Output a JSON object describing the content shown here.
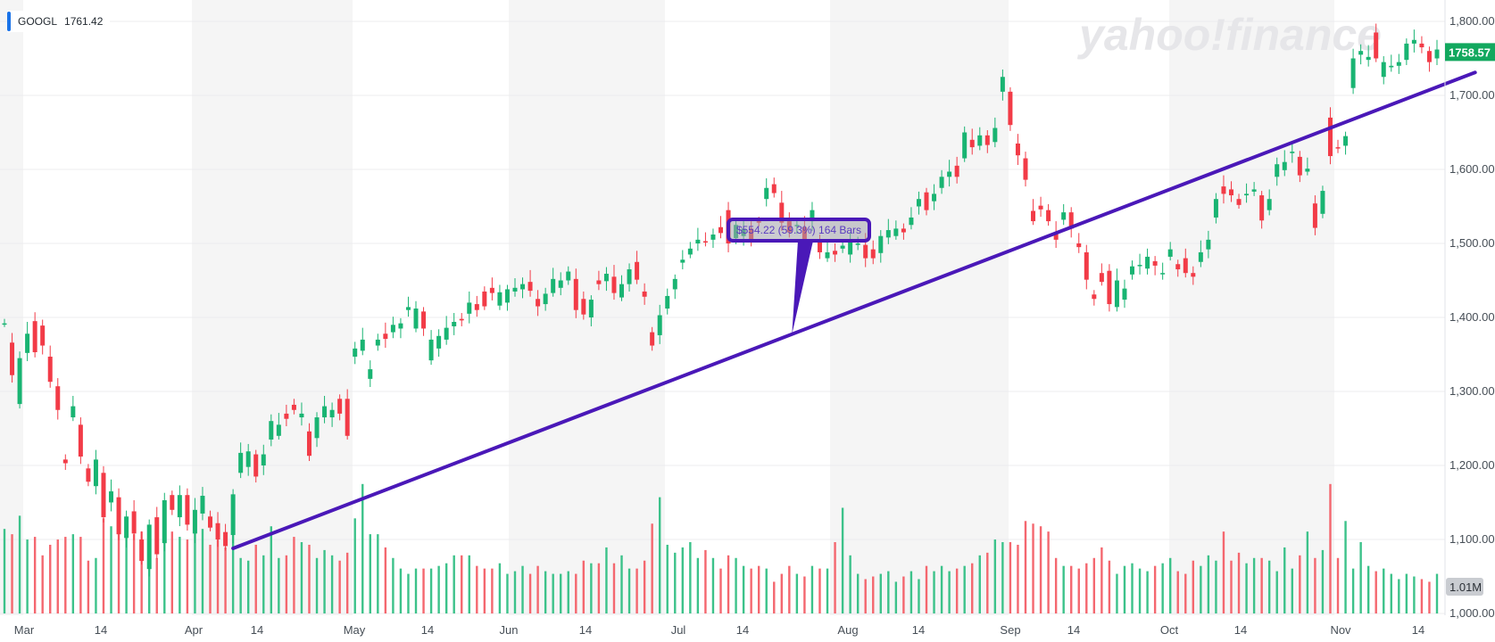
{
  "ticker": {
    "symbol": "GOOGL",
    "value": "1761.42"
  },
  "watermark": "yahoo!finance",
  "price_tag": "1758.57",
  "volume_tag": "1.01M",
  "annotation_label": "$554.22 (59.3%) 164 Bars",
  "colors": {
    "up": "#19b472",
    "down": "#f23b47",
    "volume_up": "#3cc28a",
    "volume_down": "#f4676f",
    "trendline": "#4a18b8",
    "band": "#f5f5f5",
    "price_tag_bg": "#12a85e",
    "volume_tag_bg": "#c9ccd1"
  },
  "chart_data": {
    "type": "candlestick",
    "ylim": [
      1000,
      1800
    ],
    "y_ticks": [
      "1,000.00",
      "1,100.00",
      "1,200.00",
      "1,300.00",
      "1,400.00",
      "1,500.00",
      "1,600.00",
      "1,700.00",
      "1,800.00"
    ],
    "x_ticks": [
      "Mar",
      "14",
      "Apr",
      "14",
      "May",
      "14",
      "Jun",
      "14",
      "Jul",
      "14",
      "Aug",
      "14",
      "Sep",
      "14",
      "Oct",
      "14",
      "Nov",
      "14"
    ],
    "series": [
      {
        "candles": [
          {
            "o": 1392,
            "c": 1392
          },
          {
            "o": 1366,
            "c": 1322
          },
          {
            "o": 1283,
            "c": 1345
          },
          {
            "o": 1352,
            "c": 1378
          },
          {
            "o": 1395,
            "c": 1353
          },
          {
            "o": 1389,
            "c": 1362
          },
          {
            "o": 1347,
            "c": 1313
          },
          {
            "o": 1307,
            "c": 1275
          },
          {
            "o": 1208,
            "c": 1203
          },
          {
            "o": 1265,
            "c": 1280
          },
          {
            "o": 1255,
            "c": 1212
          },
          {
            "o": 1196,
            "c": 1178
          },
          {
            "o": 1172,
            "c": 1208
          },
          {
            "o": 1190,
            "c": 1130
          },
          {
            "o": 1150,
            "c": 1165
          },
          {
            "o": 1157,
            "c": 1107
          },
          {
            "o": 1102,
            "c": 1131
          },
          {
            "o": 1138,
            "c": 1108
          },
          {
            "o": 1100,
            "c": 1071
          },
          {
            "o": 1060,
            "c": 1120
          },
          {
            "o": 1130,
            "c": 1080
          },
          {
            "o": 1095,
            "c": 1153
          },
          {
            "o": 1160,
            "c": 1140
          },
          {
            "o": 1130,
            "c": 1160
          },
          {
            "o": 1160,
            "c": 1120
          },
          {
            "o": 1108,
            "c": 1140
          },
          {
            "o": 1135,
            "c": 1159
          },
          {
            "o": 1131,
            "c": 1116
          },
          {
            "o": 1122,
            "c": 1100
          },
          {
            "o": 1110,
            "c": 1091
          },
          {
            "o": 1106,
            "c": 1161
          },
          {
            "o": 1190,
            "c": 1217
          },
          {
            "o": 1198,
            "c": 1219
          },
          {
            "o": 1215,
            "c": 1185
          },
          {
            "o": 1200,
            "c": 1215
          },
          {
            "o": 1235,
            "c": 1260
          },
          {
            "o": 1240,
            "c": 1255
          },
          {
            "o": 1270,
            "c": 1263
          },
          {
            "o": 1282,
            "c": 1275
          },
          {
            "o": 1265,
            "c": 1270
          },
          {
            "o": 1246,
            "c": 1213
          },
          {
            "o": 1237,
            "c": 1265
          },
          {
            "o": 1265,
            "c": 1280
          },
          {
            "o": 1265,
            "c": 1275
          },
          {
            "o": 1290,
            "c": 1270
          },
          {
            "o": 1290,
            "c": 1240
          },
          {
            "o": 1347,
            "c": 1358
          },
          {
            "o": 1355,
            "c": 1370
          },
          {
            "o": 1317,
            "c": 1330
          },
          {
            "o": 1362,
            "c": 1370
          },
          {
            "o": 1378,
            "c": 1371
          },
          {
            "o": 1380,
            "c": 1390
          },
          {
            "o": 1385,
            "c": 1392
          },
          {
            "o": 1410,
            "c": 1414
          },
          {
            "o": 1385,
            "c": 1412
          },
          {
            "o": 1408,
            "c": 1385
          },
          {
            "o": 1342,
            "c": 1370
          },
          {
            "o": 1358,
            "c": 1375
          },
          {
            "o": 1370,
            "c": 1386
          },
          {
            "o": 1388,
            "c": 1394
          },
          {
            "o": 1398,
            "c": 1396
          },
          {
            "o": 1405,
            "c": 1420
          },
          {
            "o": 1418,
            "c": 1410
          },
          {
            "o": 1435,
            "c": 1415
          },
          {
            "o": 1440,
            "c": 1433
          },
          {
            "o": 1416,
            "c": 1434
          },
          {
            "o": 1420,
            "c": 1438
          },
          {
            "o": 1435,
            "c": 1440
          },
          {
            "o": 1438,
            "c": 1445
          },
          {
            "o": 1448,
            "c": 1436
          },
          {
            "o": 1425,
            "c": 1415
          },
          {
            "o": 1418,
            "c": 1432
          },
          {
            "o": 1433,
            "c": 1452
          },
          {
            "o": 1440,
            "c": 1450
          },
          {
            "o": 1450,
            "c": 1462
          },
          {
            "o": 1452,
            "c": 1410
          },
          {
            "o": 1425,
            "c": 1404
          },
          {
            "o": 1400,
            "c": 1424
          },
          {
            "o": 1450,
            "c": 1445
          },
          {
            "o": 1449,
            "c": 1459
          },
          {
            "o": 1455,
            "c": 1433
          },
          {
            "o": 1427,
            "c": 1445
          },
          {
            "o": 1445,
            "c": 1465
          },
          {
            "o": 1475,
            "c": 1451
          },
          {
            "o": 1435,
            "c": 1428
          },
          {
            "o": 1380,
            "c": 1362
          },
          {
            "o": 1376,
            "c": 1403
          },
          {
            "o": 1412,
            "c": 1429
          },
          {
            "o": 1438,
            "c": 1452
          },
          {
            "o": 1474,
            "c": 1478
          },
          {
            "o": 1485,
            "c": 1493
          },
          {
            "o": 1500,
            "c": 1505
          },
          {
            "o": 1503,
            "c": 1502
          },
          {
            "o": 1505,
            "c": 1512
          },
          {
            "o": 1522,
            "c": 1514
          },
          {
            "o": 1545,
            "c": 1500
          },
          {
            "o": 1507,
            "c": 1525
          },
          {
            "o": 1510,
            "c": 1520
          },
          {
            "o": 1520,
            "c": 1505
          },
          {
            "o": 1530,
            "c": 1528
          },
          {
            "o": 1560,
            "c": 1575
          },
          {
            "o": 1580,
            "c": 1568
          },
          {
            "o": 1555,
            "c": 1528
          },
          {
            "o": 1530,
            "c": 1515
          },
          {
            "o": 1525,
            "c": 1525
          },
          {
            "o": 1522,
            "c": 1498
          },
          {
            "o": 1530,
            "c": 1545
          },
          {
            "o": 1505,
            "c": 1488
          },
          {
            "o": 1480,
            "c": 1488
          },
          {
            "o": 1490,
            "c": 1485
          },
          {
            "o": 1493,
            "c": 1497
          },
          {
            "o": 1485,
            "c": 1502
          },
          {
            "o": 1498,
            "c": 1500
          },
          {
            "o": 1498,
            "c": 1480
          },
          {
            "o": 1492,
            "c": 1480
          },
          {
            "o": 1487,
            "c": 1510
          },
          {
            "o": 1508,
            "c": 1518
          },
          {
            "o": 1510,
            "c": 1520
          },
          {
            "o": 1520,
            "c": 1515
          },
          {
            "o": 1525,
            "c": 1535
          },
          {
            "o": 1550,
            "c": 1560
          },
          {
            "o": 1569,
            "c": 1545
          },
          {
            "o": 1557,
            "c": 1567
          },
          {
            "o": 1575,
            "c": 1590
          },
          {
            "o": 1590,
            "c": 1597
          },
          {
            "o": 1605,
            "c": 1590
          },
          {
            "o": 1615,
            "c": 1650
          },
          {
            "o": 1640,
            "c": 1630
          },
          {
            "o": 1632,
            "c": 1646
          },
          {
            "o": 1646,
            "c": 1633
          },
          {
            "o": 1637,
            "c": 1656
          },
          {
            "o": 1705,
            "c": 1725
          },
          {
            "o": 1705,
            "c": 1660
          },
          {
            "o": 1635,
            "c": 1619
          },
          {
            "o": 1615,
            "c": 1586
          },
          {
            "o": 1544,
            "c": 1530
          },
          {
            "o": 1551,
            "c": 1546
          },
          {
            "o": 1545,
            "c": 1530
          },
          {
            "o": 1515,
            "c": 1505
          },
          {
            "o": 1532,
            "c": 1542
          },
          {
            "o": 1542,
            "c": 1520
          },
          {
            "o": 1500,
            "c": 1495
          },
          {
            "o": 1488,
            "c": 1451
          },
          {
            "o": 1431,
            "c": 1425
          },
          {
            "o": 1460,
            "c": 1448
          },
          {
            "o": 1463,
            "c": 1418
          },
          {
            "o": 1414,
            "c": 1450
          },
          {
            "o": 1424,
            "c": 1439
          },
          {
            "o": 1458,
            "c": 1469
          },
          {
            "o": 1470,
            "c": 1471
          },
          {
            "o": 1466,
            "c": 1482
          },
          {
            "o": 1476,
            "c": 1470
          },
          {
            "o": 1460,
            "c": 1460
          },
          {
            "o": 1482,
            "c": 1492
          },
          {
            "o": 1472,
            "c": 1465
          },
          {
            "o": 1480,
            "c": 1460
          },
          {
            "o": 1460,
            "c": 1455
          },
          {
            "o": 1475,
            "c": 1488
          },
          {
            "o": 1492,
            "c": 1505
          },
          {
            "o": 1535,
            "c": 1560
          },
          {
            "o": 1577,
            "c": 1567
          },
          {
            "o": 1573,
            "c": 1565
          },
          {
            "o": 1560,
            "c": 1552
          },
          {
            "o": 1565,
            "c": 1567
          },
          {
            "o": 1570,
            "c": 1573
          },
          {
            "o": 1565,
            "c": 1531
          },
          {
            "o": 1545,
            "c": 1560
          },
          {
            "o": 1590,
            "c": 1607
          },
          {
            "o": 1599,
            "c": 1610
          },
          {
            "o": 1622,
            "c": 1624
          },
          {
            "o": 1617,
            "c": 1592
          },
          {
            "o": 1597,
            "c": 1601
          },
          {
            "o": 1554,
            "c": 1521
          },
          {
            "o": 1540,
            "c": 1571
          },
          {
            "o": 1670,
            "c": 1618
          },
          {
            "o": 1630,
            "c": 1629
          },
          {
            "o": 1632,
            "c": 1645
          },
          {
            "o": 1710,
            "c": 1750
          },
          {
            "o": 1755,
            "c": 1760
          },
          {
            "o": 1748,
            "c": 1752
          },
          {
            "o": 1785,
            "c": 1750
          },
          {
            "o": 1725,
            "c": 1745
          },
          {
            "o": 1738,
            "c": 1740
          },
          {
            "o": 1740,
            "c": 1745
          },
          {
            "o": 1748,
            "c": 1770
          },
          {
            "o": 1770,
            "c": 1775
          },
          {
            "o": 1770,
            "c": 1765
          },
          {
            "o": 1760,
            "c": 1745
          },
          {
            "o": 1750,
            "c": 1762
          }
        ]
      },
      {
        "name": "",
        "volume_millions": [
          1.6,
          1.5,
          1.85,
          1.4,
          1.45,
          1.1,
          1.3,
          1.4,
          1.45,
          1.5,
          1.45,
          1.0,
          1.05,
          1.8,
          1.65,
          1.75,
          1.6,
          1.5,
          1.55,
          1.6,
          1.05,
          1.5,
          1.55,
          1.45,
          1.4,
          1.65,
          1.6,
          1.3,
          1.4,
          1.25,
          1.6,
          1.05,
          1.0,
          1.3,
          1.1,
          1.65,
          1.05,
          1.1,
          1.45,
          1.35,
          1.3,
          1.05,
          1.2,
          1.1,
          1.0,
          1.15,
          1.8,
          2.45,
          1.5,
          1.5,
          1.25,
          1.05,
          0.85,
          0.75,
          0.85,
          0.85,
          0.85,
          0.9,
          0.95,
          1.1,
          1.1,
          1.1,
          0.9,
          0.85,
          0.85,
          0.95,
          0.75,
          0.8,
          0.9,
          0.75,
          0.9,
          0.8,
          0.75,
          0.75,
          0.8,
          0.75,
          1.0,
          0.95,
          0.95,
          1.25,
          0.95,
          1.1,
          0.85,
          0.85,
          1.0,
          1.7,
          2.2,
          1.3,
          1.15,
          1.25,
          1.35,
          1.05,
          1.2,
          1.05,
          0.85,
          1.1,
          1.05,
          0.9,
          0.85,
          0.9,
          0.85,
          0.6,
          0.75,
          0.9,
          0.75,
          0.7,
          0.9,
          0.85,
          0.85,
          1.35,
          2.0,
          1.1,
          0.75,
          0.65,
          0.7,
          0.75,
          0.8,
          0.6,
          0.7,
          0.8,
          0.65,
          0.9,
          0.8,
          0.9,
          0.8,
          0.85,
          0.9,
          0.95,
          1.1,
          1.15,
          1.4,
          1.35,
          1.35,
          1.3,
          1.75,
          1.7,
          1.65,
          1.55,
          1.05,
          0.9,
          0.9,
          0.85,
          0.95,
          1.05,
          1.25,
          1.0,
          0.75,
          0.9,
          0.95,
          0.85,
          0.8,
          0.9,
          0.95,
          1.05,
          0.8,
          0.75,
          1.0,
          0.9,
          1.1,
          1.0,
          1.55,
          1.0,
          1.15,
          0.95,
          1.05,
          1.05,
          1.0,
          0.8,
          1.25,
          0.85,
          1.1,
          1.55,
          1.05,
          1.2,
          2.45,
          1.05,
          1.75,
          0.85,
          1.35,
          0.9,
          0.8,
          0.85,
          0.75,
          0.65,
          0.75,
          0.7,
          0.65,
          0.6,
          0.75
        ]
      }
    ],
    "trendline": {
      "from": {
        "bar": 30,
        "price": 1088
      },
      "to": {
        "bar": 193,
        "price": 1731
      }
    }
  }
}
